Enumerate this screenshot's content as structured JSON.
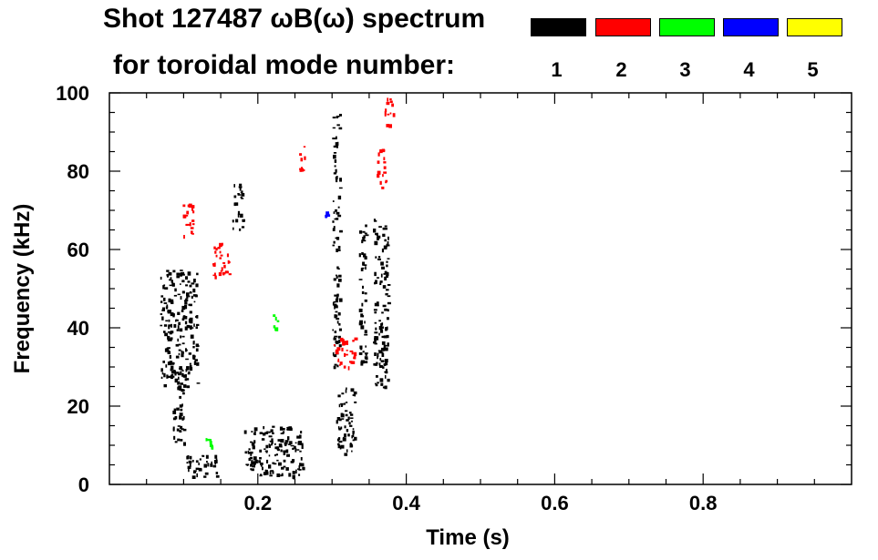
{
  "chart_data": {
    "type": "heatmap",
    "title": "Shot 127487 ωB(ω) spectrum",
    "subtitle": "for toroidal mode number:",
    "xlabel": "Time (s)",
    "ylabel": "Frequency (kHz)",
    "xlim": [
      0.0,
      1.0
    ],
    "ylim": [
      0,
      100
    ],
    "x_ticks": [
      "0.2",
      "0.4",
      "0.6",
      "0.8"
    ],
    "x_tick_values": [
      0.2,
      0.4,
      0.6,
      0.8
    ],
    "y_ticks": [
      "0",
      "20",
      "40",
      "60",
      "80",
      "100"
    ],
    "y_tick_values": [
      0,
      20,
      40,
      60,
      80,
      100
    ],
    "legend_placement": "top-right",
    "legend": [
      {
        "label": "1",
        "color": "#000000"
      },
      {
        "label": "2",
        "color": "#ff0000"
      },
      {
        "label": "3",
        "color": "#00ff00"
      },
      {
        "label": "4",
        "color": "#0000ff"
      },
      {
        "label": "5",
        "color": "#ffff00"
      }
    ],
    "regions": [
      {
        "mode": "1",
        "t": [
          0.068,
          0.118
        ],
        "f": [
          25,
          55
        ]
      },
      {
        "mode": "1",
        "t": [
          0.085,
          0.1
        ],
        "f": [
          10,
          30
        ]
      },
      {
        "mode": "1",
        "t": [
          0.1,
          0.145
        ],
        "f": [
          2,
          8
        ]
      },
      {
        "mode": "1",
        "t": [
          0.165,
          0.18
        ],
        "f": [
          65,
          77
        ]
      },
      {
        "mode": "1",
        "t": [
          0.18,
          0.26
        ],
        "f": [
          2,
          15
        ]
      },
      {
        "mode": "1",
        "t": [
          0.305,
          0.33
        ],
        "f": [
          8,
          25
        ]
      },
      {
        "mode": "1",
        "t": [
          0.355,
          0.375
        ],
        "f": [
          25,
          68
        ]
      },
      {
        "mode": "1",
        "t": [
          0.336,
          0.345
        ],
        "f": [
          30,
          70
        ]
      },
      {
        "mode": "1",
        "t": [
          0.3,
          0.31
        ],
        "f": [
          30,
          95
        ]
      },
      {
        "mode": "2",
        "t": [
          0.138,
          0.162
        ],
        "f": [
          53,
          62
        ]
      },
      {
        "mode": "2",
        "t": [
          0.255,
          0.264
        ],
        "f": [
          80,
          87
        ]
      },
      {
        "mode": "2",
        "t": [
          0.36,
          0.372
        ],
        "f": [
          76,
          86
        ]
      },
      {
        "mode": "2",
        "t": [
          0.302,
          0.33
        ],
        "f": [
          30,
          38
        ]
      },
      {
        "mode": "2",
        "t": [
          0.37,
          0.382
        ],
        "f": [
          92,
          100
        ]
      },
      {
        "mode": "2",
        "t": [
          0.098,
          0.112
        ],
        "f": [
          62,
          72
        ]
      },
      {
        "mode": "3",
        "t": [
          0.128,
          0.138
        ],
        "f": [
          8,
          13
        ]
      },
      {
        "mode": "3",
        "t": [
          0.22,
          0.226
        ],
        "f": [
          40,
          45
        ]
      },
      {
        "mode": "4",
        "t": [
          0.29,
          0.294
        ],
        "f": [
          68,
          70
        ]
      }
    ]
  }
}
